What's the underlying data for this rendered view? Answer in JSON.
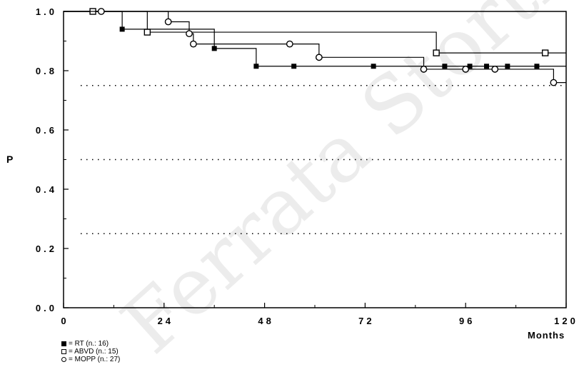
{
  "chart_data": {
    "type": "line",
    "subtype": "step",
    "ylabel": "P",
    "xlabel": "Months",
    "xlim": [
      0,
      120
    ],
    "ylim": [
      0.0,
      1.0
    ],
    "xticks": [
      0,
      24,
      48,
      72,
      96,
      120
    ],
    "xtick_labels": [
      "0",
      "24",
      "48",
      "72",
      "96",
      "120"
    ],
    "yticks": [
      0.0,
      0.2,
      0.4,
      0.6,
      0.8,
      1.0
    ],
    "ytick_labels": [
      "0.0",
      "0.2",
      "0.4",
      "0.6",
      "0.8",
      "1.0"
    ],
    "reference_lines": [
      0.25,
      0.5,
      0.75
    ],
    "grid": false,
    "legend_position": "bottom-left",
    "series": [
      {
        "name": "RT",
        "legend_label": "= RT  (n.: 16)",
        "marker": "filled-square",
        "color": "#000000",
        "steps": [
          [
            0,
            1.0
          ],
          [
            14,
            0.94
          ],
          [
            36,
            0.875
          ],
          [
            46,
            0.815
          ],
          [
            120,
            0.815
          ]
        ],
        "markers": [
          [
            14,
            0.94
          ],
          [
            36,
            0.875
          ],
          [
            46,
            0.815
          ],
          [
            55,
            0.815
          ],
          [
            74,
            0.815
          ],
          [
            91,
            0.815
          ],
          [
            97,
            0.815
          ],
          [
            101,
            0.815
          ],
          [
            106,
            0.815
          ],
          [
            113,
            0.815
          ]
        ]
      },
      {
        "name": "ABVD",
        "legend_label": "= ABVD  (n.: 15)",
        "marker": "open-square",
        "color": "#000000",
        "steps": [
          [
            0,
            1.0
          ],
          [
            20,
            0.93
          ],
          [
            30,
            0.93
          ],
          [
            89,
            0.86
          ],
          [
            120,
            0.86
          ]
        ],
        "markers": [
          [
            7,
            1.0
          ],
          [
            20,
            0.93
          ],
          [
            89,
            0.86
          ],
          [
            115,
            0.86
          ]
        ]
      },
      {
        "name": "MOPP",
        "legend_label": "= MOPP  (n.: 27)",
        "marker": "open-circle",
        "color": "#000000",
        "steps": [
          [
            0,
            1.0
          ],
          [
            25,
            0.965
          ],
          [
            30,
            0.925
          ],
          [
            31,
            0.89
          ],
          [
            61,
            0.845
          ],
          [
            86,
            0.805
          ],
          [
            117,
            0.76
          ],
          [
            120,
            0.76
          ]
        ],
        "markers": [
          [
            9,
            1.0
          ],
          [
            25,
            0.965
          ],
          [
            30,
            0.925
          ],
          [
            31,
            0.89
          ],
          [
            54,
            0.89
          ],
          [
            61,
            0.845
          ],
          [
            86,
            0.805
          ],
          [
            96,
            0.805
          ],
          [
            103,
            0.805
          ],
          [
            117,
            0.76
          ]
        ]
      }
    ]
  },
  "watermark_text": "Ferrata Storti Foundation"
}
